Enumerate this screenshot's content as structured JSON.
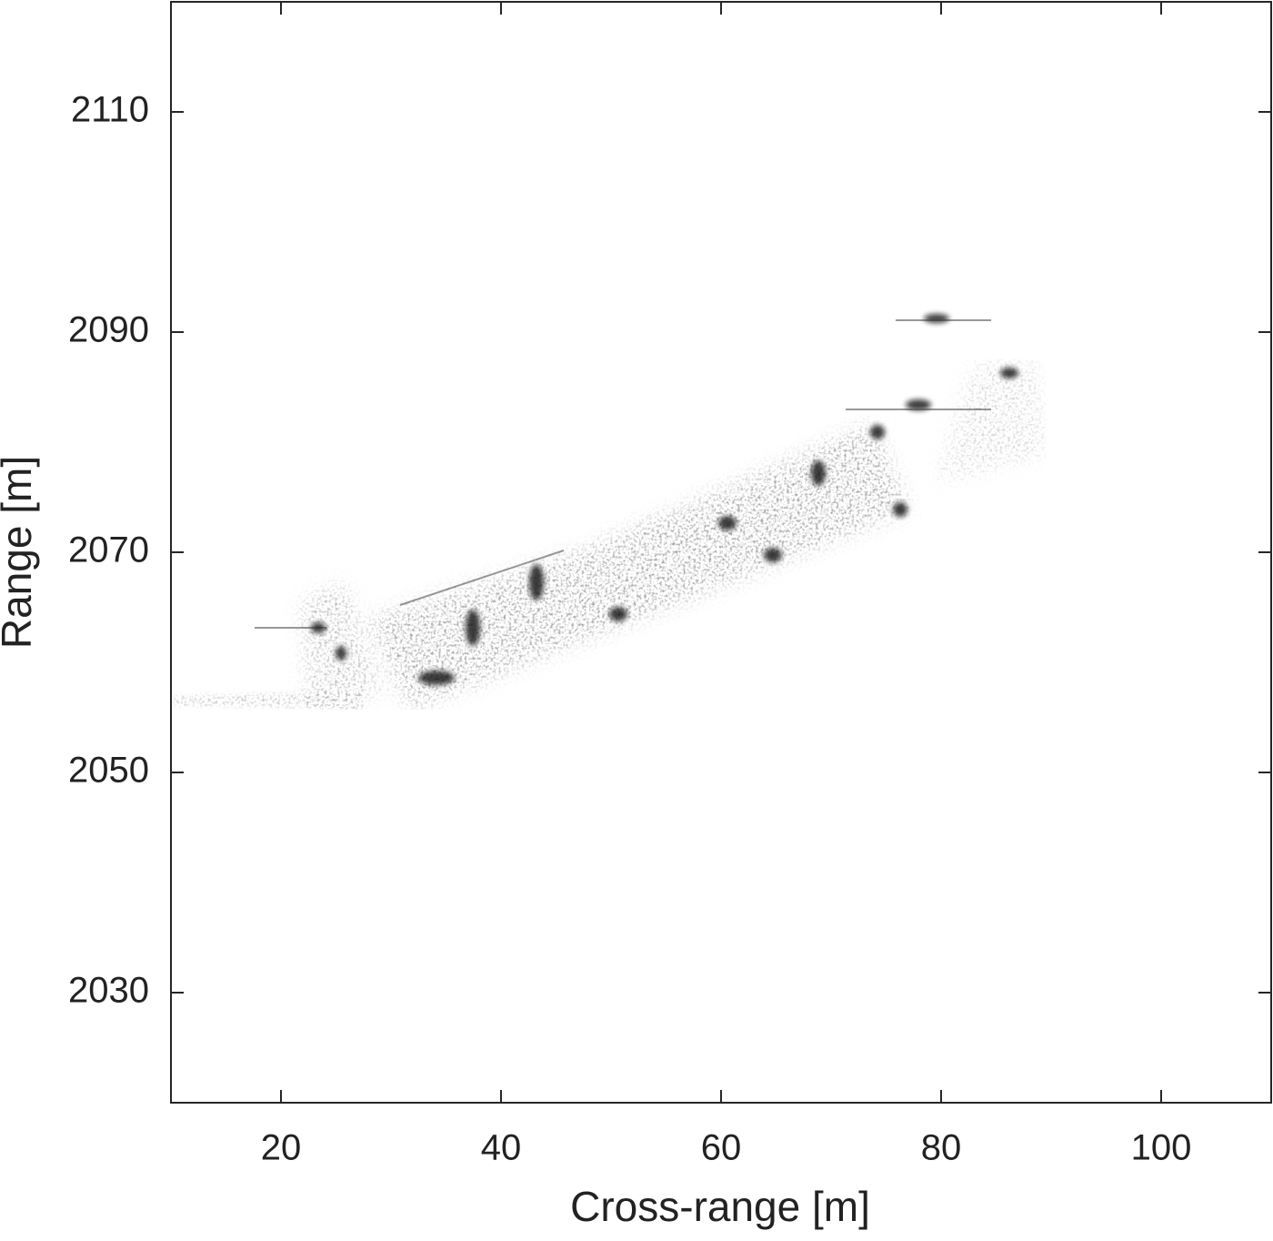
{
  "chart_data": {
    "type": "image",
    "xlabel": "Cross-range [m]",
    "ylabel": "Range [m]",
    "xlim": [
      10,
      110
    ],
    "xticks": [
      20,
      40,
      60,
      80,
      100
    ],
    "ylim": [
      2020,
      2120
    ],
    "yticks": [
      2030,
      2050,
      2070,
      2090,
      2110
    ],
    "colormap": "gray-inverted",
    "box": true
  }
}
